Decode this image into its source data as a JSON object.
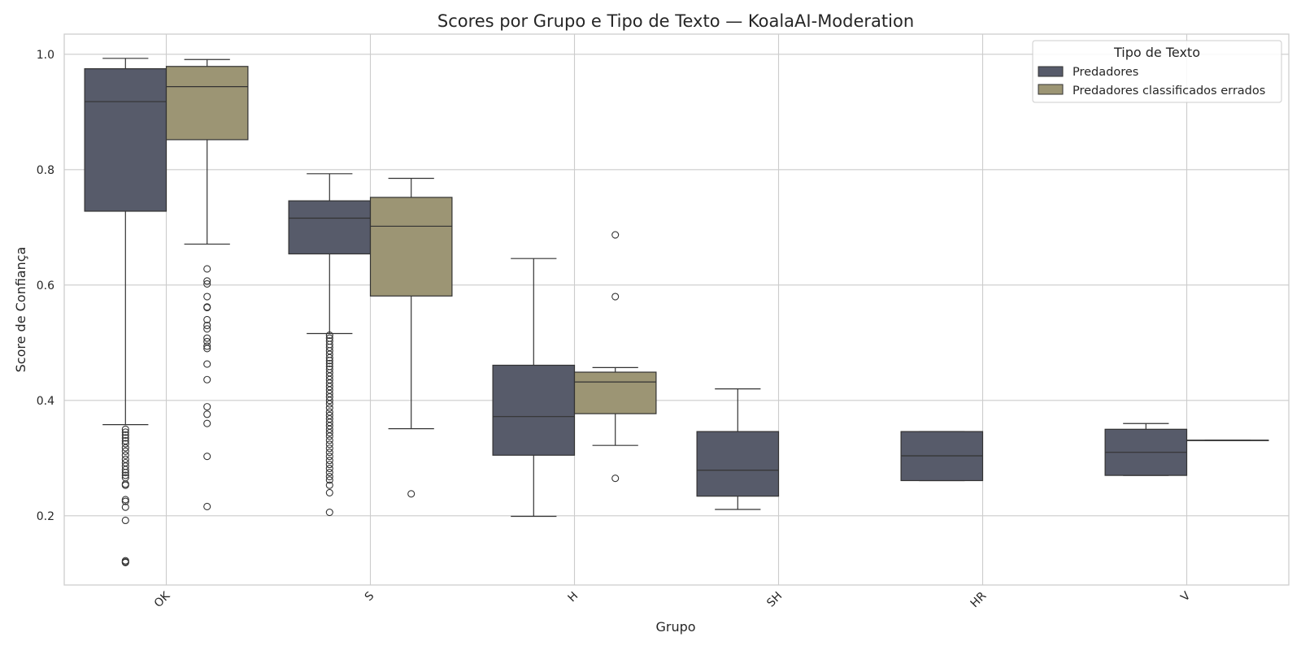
{
  "chart_data": {
    "type": "boxplot",
    "title": "Scores por Grupo e Tipo de Texto — KoalaAI-Moderation",
    "xlabel": "Grupo",
    "ylabel": "Score de Confiança",
    "categories": [
      "OK",
      "S",
      "H",
      "SH",
      "HR",
      "V"
    ],
    "ylim": [
      0.08,
      1.035
    ],
    "yticks": [
      0.2,
      0.4,
      0.6,
      0.8,
      1.0
    ],
    "ytick_labels": [
      "0.2",
      "0.4",
      "0.6",
      "0.8",
      "1.0"
    ],
    "grid": true,
    "legend": {
      "title": "Tipo de Texto",
      "position": "top-right",
      "entries": [
        "Predadores",
        "Predadores classificados errados"
      ]
    },
    "series": [
      {
        "name": "Predadores",
        "color": "#575b6a",
        "boxes": [
          {
            "category": "OK",
            "whisker_low": 0.358,
            "q1": 0.728,
            "median": 0.918,
            "q3": 0.975,
            "whisker_high": 0.993,
            "outliers": [
              0.35,
              0.345,
              0.34,
              0.335,
              0.33,
              0.325,
              0.318,
              0.312,
              0.305,
              0.298,
              0.292,
              0.286,
              0.28,
              0.275,
              0.27,
              0.266,
              0.255,
              0.253,
              0.228,
              0.225,
              0.215,
              0.192,
              0.122,
              0.12,
              0.119
            ]
          },
          {
            "category": "S",
            "whisker_low": 0.516,
            "q1": 0.654,
            "median": 0.716,
            "q3": 0.746,
            "whisker_high": 0.793,
            "outliers": [
              0.513,
              0.508,
              0.503,
              0.497,
              0.492,
              0.486,
              0.48,
              0.474,
              0.469,
              0.464,
              0.459,
              0.454,
              0.448,
              0.442,
              0.436,
              0.43,
              0.424,
              0.418,
              0.412,
              0.406,
              0.4,
              0.394,
              0.387,
              0.38,
              0.374,
              0.368,
              0.362,
              0.356,
              0.35,
              0.344,
              0.338,
              0.331,
              0.324,
              0.317,
              0.31,
              0.303,
              0.296,
              0.289,
              0.282,
              0.275,
              0.268,
              0.262,
              0.253,
              0.24,
              0.206
            ]
          },
          {
            "category": "H",
            "whisker_low": 0.199,
            "q1": 0.305,
            "median": 0.372,
            "q3": 0.461,
            "whisker_high": 0.646,
            "outliers": []
          },
          {
            "category": "SH",
            "whisker_low": 0.211,
            "q1": 0.234,
            "median": 0.279,
            "q3": 0.346,
            "whisker_high": 0.42,
            "outliers": []
          },
          {
            "category": "HR",
            "whisker_low": 0.261,
            "q1": 0.261,
            "median": 0.304,
            "q3": 0.346,
            "whisker_high": 0.346,
            "outliers": []
          },
          {
            "category": "V",
            "whisker_low": 0.27,
            "q1": 0.27,
            "median": 0.31,
            "q3": 0.35,
            "whisker_high": 0.36,
            "outliers": []
          }
        ]
      },
      {
        "name": "Predadores classificados errados",
        "color": "#9c9574",
        "boxes": [
          {
            "category": "OK",
            "whisker_low": 0.671,
            "q1": 0.852,
            "median": 0.944,
            "q3": 0.979,
            "whisker_high": 0.991,
            "outliers": [
              0.628,
              0.607,
              0.602,
              0.58,
              0.562,
              0.561,
              0.54,
              0.53,
              0.524,
              0.508,
              0.502,
              0.494,
              0.49,
              0.463,
              0.436,
              0.389,
              0.376,
              0.36,
              0.303,
              0.216
            ]
          },
          {
            "category": "S",
            "whisker_low": 0.351,
            "q1": 0.581,
            "median": 0.702,
            "q3": 0.752,
            "whisker_high": 0.785,
            "outliers": [
              0.238
            ]
          },
          {
            "category": "H",
            "whisker_low": 0.322,
            "q1": 0.377,
            "median": 0.432,
            "q3": 0.449,
            "whisker_high": 0.457,
            "outliers": [
              0.687,
              0.58,
              0.265
            ]
          },
          {
            "category": "SH",
            "empty": true
          },
          {
            "category": "HR",
            "empty": true
          },
          {
            "category": "V",
            "whisker_low": 0.331,
            "q1": 0.331,
            "median": 0.331,
            "q3": 0.331,
            "whisker_high": 0.331,
            "outliers": []
          }
        ]
      }
    ]
  }
}
